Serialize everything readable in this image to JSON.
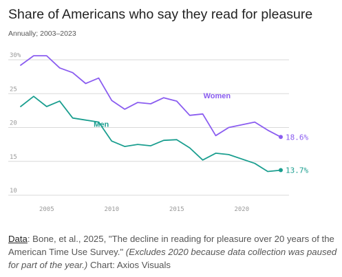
{
  "header": {
    "title": "Share of Americans who say they read for pleasure",
    "subtitle": "Annually; 2003–2023"
  },
  "footer": {
    "data_label": "Data",
    "source": ": Bone, et al., 2025, \"The decline in reading for pleasure over 20 years of the American Time Use Survey.\" ",
    "note": "(Excludes 2020 because data collection was paused for part of the year.)",
    "credit": " Chart: Axios Visuals"
  },
  "colors": {
    "women": "#8a5cf0",
    "men": "#1a9e8f",
    "grid": "#d9d9d9",
    "axis_text": "#999999"
  },
  "chart_data": {
    "type": "line",
    "title": "Share of Americans who say they read for pleasure",
    "subtitle": "Annually; 2003–2023",
    "xlabel": "",
    "ylabel": "",
    "xlim": [
      2003,
      2023
    ],
    "ylim": [
      10,
      30
    ],
    "x_ticks": [
      2005,
      2010,
      2015,
      2020
    ],
    "x_tick_labels": [
      "2005",
      "2010",
      "2015",
      "2020"
    ],
    "y_ticks": [
      10,
      15,
      20,
      25,
      30
    ],
    "y_tick_labels": [
      "10",
      "15",
      "20",
      "25",
      "30%"
    ],
    "grid": true,
    "series": [
      {
        "name": "Women",
        "color": "#8a5cf0",
        "end_label": "18.6%",
        "x": [
          2003,
          2004,
          2005,
          2006,
          2007,
          2008,
          2009,
          2010,
          2011,
          2012,
          2013,
          2014,
          2015,
          2016,
          2017,
          2018,
          2019,
          2021,
          2022,
          2023
        ],
        "y": [
          29.2,
          30.6,
          30.6,
          28.8,
          28.1,
          26.5,
          27.3,
          24.0,
          22.7,
          23.7,
          23.5,
          24.4,
          23.9,
          21.8,
          22.0,
          18.8,
          20.0,
          20.8,
          19.6,
          18.6
        ]
      },
      {
        "name": "Men",
        "color": "#1a9e8f",
        "end_label": "13.7%",
        "x": [
          2003,
          2004,
          2005,
          2006,
          2007,
          2008,
          2009,
          2010,
          2011,
          2012,
          2013,
          2014,
          2015,
          2016,
          2017,
          2018,
          2019,
          2021,
          2022,
          2023
        ],
        "y": [
          23.1,
          24.6,
          23.1,
          23.9,
          21.4,
          21.1,
          20.8,
          18.0,
          17.2,
          17.5,
          17.3,
          18.1,
          18.2,
          17.0,
          15.2,
          16.2,
          16.0,
          14.7,
          13.5,
          13.7
        ]
      }
    ]
  }
}
